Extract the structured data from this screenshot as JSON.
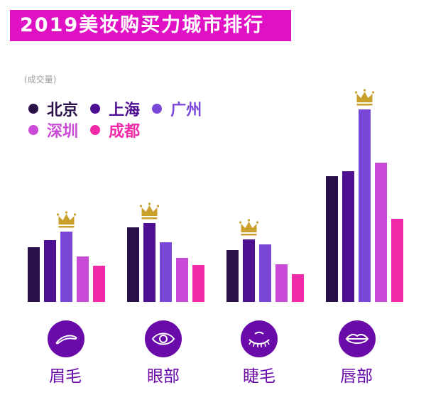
{
  "title": "2019美妆购买力城市排行",
  "chart_data": {
    "type": "bar",
    "title": "2019美妆购买力城市排行",
    "ylabel": "(成交量)",
    "xlabel": "",
    "legend_position": "top-left",
    "grid": false,
    "categories": [
      "眉毛",
      "眼部",
      "睫毛",
      "唇部"
    ],
    "category_icons": [
      "eyebrow-icon",
      "eye-icon",
      "eyelash-icon",
      "lips-icon"
    ],
    "series": [
      {
        "name": "北京",
        "color": "#2a1048",
        "values": [
          77,
          105,
          73,
          177
        ]
      },
      {
        "name": "上海",
        "color": "#4e0f92",
        "values": [
          87,
          111,
          88,
          184
        ]
      },
      {
        "name": "广州",
        "color": "#7a48d8",
        "values": [
          99,
          84,
          81,
          271
        ]
      },
      {
        "name": "深圳",
        "color": "#c94ad6",
        "values": [
          64,
          62,
          53,
          196
        ]
      },
      {
        "name": "成都",
        "color": "#f02aa8",
        "values": [
          51,
          52,
          39,
          117
        ]
      }
    ],
    "ylim": [
      0,
      285
    ],
    "note": "values are relative (no axis ticks shown); crown marks the top city per category"
  },
  "colors": {
    "title_bg": "#e010c4",
    "crown": "#c9a02c",
    "icon_bg": "#6a0aa8",
    "label": "#6a0aa8",
    "unit": "#9a9a9a"
  }
}
